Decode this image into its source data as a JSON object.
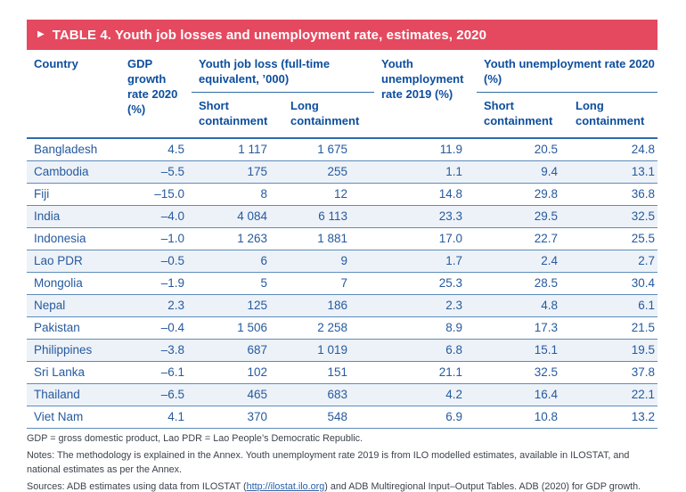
{
  "title_bar": {
    "arrow_icon": "▶",
    "title": "TABLE 4. Youth job losses and unemployment rate, estimates, 2020"
  },
  "colors": {
    "title_bar_background": "#e5495f",
    "header_text": "#0d4e9e",
    "data_text": "#265a9e",
    "row_divider": "#5d8cba",
    "alt_row_background": "#edf2f8",
    "link": "#2a61a8"
  },
  "table": {
    "headers": {
      "country": "Country",
      "gdp": "GDP growth rate 2020 (%)",
      "job_loss_group": "Youth job loss (full-time equivalent, ’000)",
      "unemp_2019": "Youth unemployment rate 2019 (%)",
      "unemp_2020_group": "Youth unemployment rate 2020 (%)",
      "short": "Short containment",
      "long": "Long containment"
    },
    "rows": [
      {
        "cells": [
          "Bangladesh",
          "4.5",
          "1 117",
          "1 675",
          "11.9",
          "20.5",
          "24.8"
        ]
      },
      {
        "cells": [
          "Cambodia",
          "–5.5",
          "175",
          "255",
          "1.1",
          "9.4",
          "13.1"
        ]
      },
      {
        "cells": [
          "Fiji",
          "–15.0",
          "8",
          "12",
          "14.8",
          "29.8",
          "36.8"
        ]
      },
      {
        "cells": [
          "India",
          "–4.0",
          "4 084",
          "6 113",
          "23.3",
          "29.5",
          "32.5"
        ]
      },
      {
        "cells": [
          "Indonesia",
          "–1.0",
          "1 263",
          "1 881",
          "17.0",
          "22.7",
          "25.5"
        ]
      },
      {
        "cells": [
          "Lao PDR",
          "–0.5",
          "6",
          "9",
          "1.7",
          "2.4",
          "2.7"
        ]
      },
      {
        "cells": [
          "Mongolia",
          "–1.9",
          "5",
          "7",
          "25.3",
          "28.5",
          "30.4"
        ]
      },
      {
        "cells": [
          "Nepal",
          "2.3",
          "125",
          "186",
          "2.3",
          "4.8",
          "6.1"
        ]
      },
      {
        "cells": [
          "Pakistan",
          "–0.4",
          "1 506",
          "2 258",
          "8.9",
          "17.3",
          "21.5"
        ]
      },
      {
        "cells": [
          "Philippines",
          "–3.8",
          "687",
          "1 019",
          "6.8",
          "15.1",
          "19.5"
        ]
      },
      {
        "cells": [
          "Sri Lanka",
          "–6.1",
          "102",
          "151",
          "21.1",
          "32.5",
          "37.8"
        ]
      },
      {
        "cells": [
          "Thailand",
          "–6.5",
          "465",
          "683",
          "4.2",
          "16.4",
          "22.1"
        ]
      },
      {
        "cells": [
          "Viet Nam",
          "4.1",
          "370",
          "548",
          "6.9",
          "10.8",
          "13.2"
        ]
      }
    ]
  },
  "footnotes": {
    "abbrev": "GDP = gross domestic product, Lao PDR = Lao People’s Democratic Republic.",
    "notes": "Notes: The methodology is explained in the Annex. Youth unemployment rate 2019 is from ILO modelled estimates, available in ILOSTAT, and national estimates as per the Annex.",
    "sources_prefix": "Sources: ADB estimates using data from ILOSTAT (",
    "link": "http://ilostat.ilo.org",
    "sources_suffix": ") and ADB Multiregional Input–Output Tables. ADB (2020) for GDP growth."
  }
}
